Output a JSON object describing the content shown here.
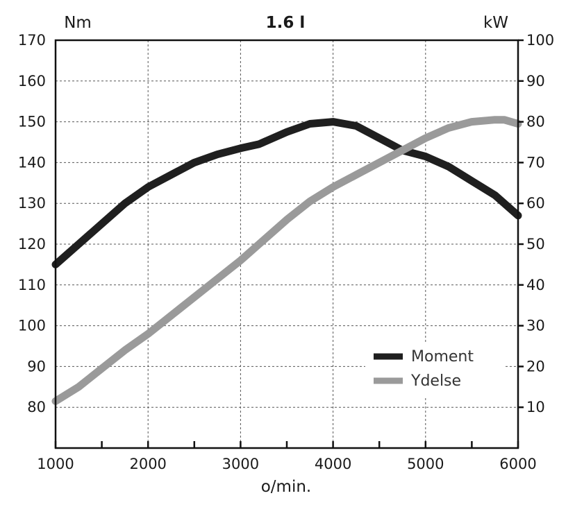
{
  "chart_data": {
    "type": "line",
    "title": "1.6 l",
    "xlabel": "o/min.",
    "ylabel_left": "Nm",
    "ylabel_right": "kW",
    "xlim": [
      1000,
      6000
    ],
    "ylim_left": [
      70,
      170
    ],
    "ylim_right": [
      0,
      100
    ],
    "x_ticks": [
      1000,
      2000,
      3000,
      4000,
      5000,
      6000
    ],
    "x_minor_ticks": [
      1500,
      2500,
      3500,
      4500,
      5500
    ],
    "y_ticks_left": [
      80,
      90,
      100,
      110,
      120,
      130,
      140,
      150,
      160,
      170
    ],
    "y_ticks_right": [
      10,
      20,
      30,
      40,
      50,
      60,
      70,
      80,
      90,
      100
    ],
    "grid": true,
    "legend_position": "lower-right",
    "series": [
      {
        "name": "Moment",
        "axis": "left",
        "color": "#1f1f1f",
        "x": [
          1000,
          1250,
          1500,
          1750,
          2000,
          2250,
          2500,
          2750,
          3000,
          3200,
          3500,
          3750,
          4000,
          4250,
          4500,
          4750,
          5000,
          5250,
          5500,
          5750,
          6000
        ],
        "values": [
          115,
          120,
          125,
          130,
          134,
          137,
          140,
          142,
          143.5,
          144.5,
          147.5,
          149.5,
          150,
          149,
          146,
          143,
          141.5,
          139,
          135.5,
          132,
          127
        ]
      },
      {
        "name": "Ydelse",
        "axis": "right",
        "color": "#9a9a9a",
        "x": [
          1000,
          1250,
          1500,
          1750,
          2000,
          2250,
          2500,
          2750,
          3000,
          3250,
          3500,
          3750,
          4000,
          4250,
          4500,
          4750,
          5000,
          5250,
          5500,
          5750,
          5850,
          6000
        ],
        "values": [
          11.5,
          15,
          19.5,
          24,
          28,
          32.5,
          37,
          41.5,
          46,
          51,
          56,
          60.5,
          64,
          67,
          70,
          73,
          76,
          78.5,
          80,
          80.5,
          80.5,
          79.5
        ]
      }
    ]
  }
}
